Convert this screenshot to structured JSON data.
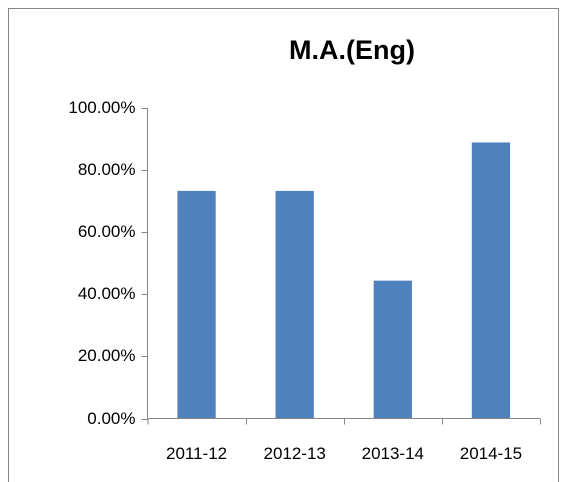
{
  "chart_data": {
    "type": "bar",
    "title": "M.A.(Eng)",
    "categories": [
      "2011-12",
      "2012-13",
      "2013-14",
      "2014-15"
    ],
    "values": [
      73.3,
      73.3,
      44.4,
      88.9
    ],
    "color": "#4f81bd",
    "ylim": [
      0,
      100
    ],
    "yticks": [
      {
        "value": 0,
        "label": "0.00%"
      },
      {
        "value": 20,
        "label": "20.00%"
      },
      {
        "value": 40,
        "label": "40.00%"
      },
      {
        "value": 60,
        "label": "60.00%"
      },
      {
        "value": 80,
        "label": "80.00%"
      },
      {
        "value": 100,
        "label": "100.00%"
      }
    ],
    "grid": false
  }
}
